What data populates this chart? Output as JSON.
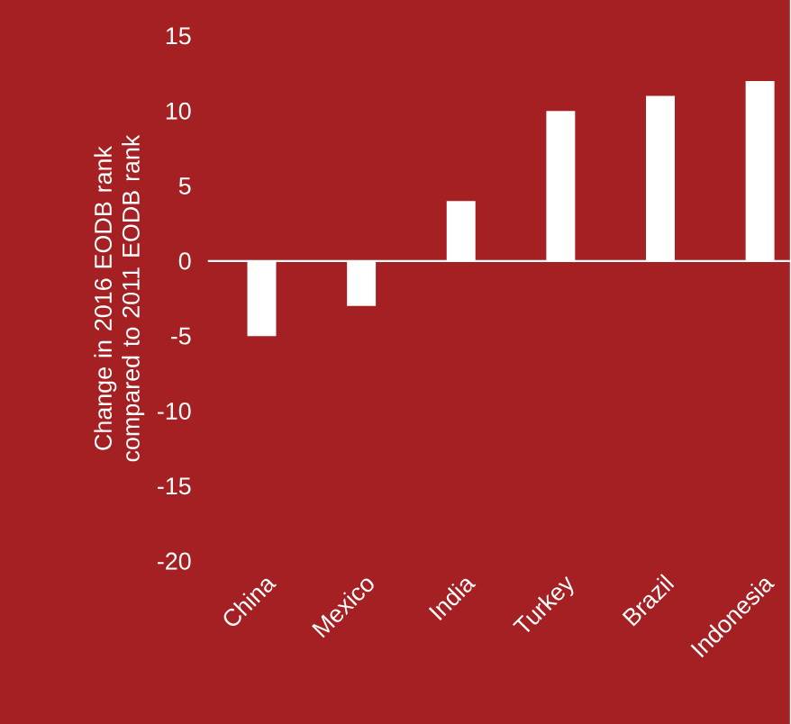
{
  "chart_data": {
    "type": "bar",
    "ylabel": "Change in 2016 EODB rank compared to 2011 EODB rank",
    "categories": [
      "China",
      "Mexico",
      "India",
      "Turkey",
      "Brazil",
      "Indonesia"
    ],
    "values": [
      -5,
      -3,
      4,
      10,
      11,
      12
    ],
    "color": "#ffffff",
    "ylim": [
      -20,
      15
    ],
    "yticks": [
      -20,
      -15,
      -10,
      -5,
      0,
      5,
      10,
      15
    ]
  }
}
